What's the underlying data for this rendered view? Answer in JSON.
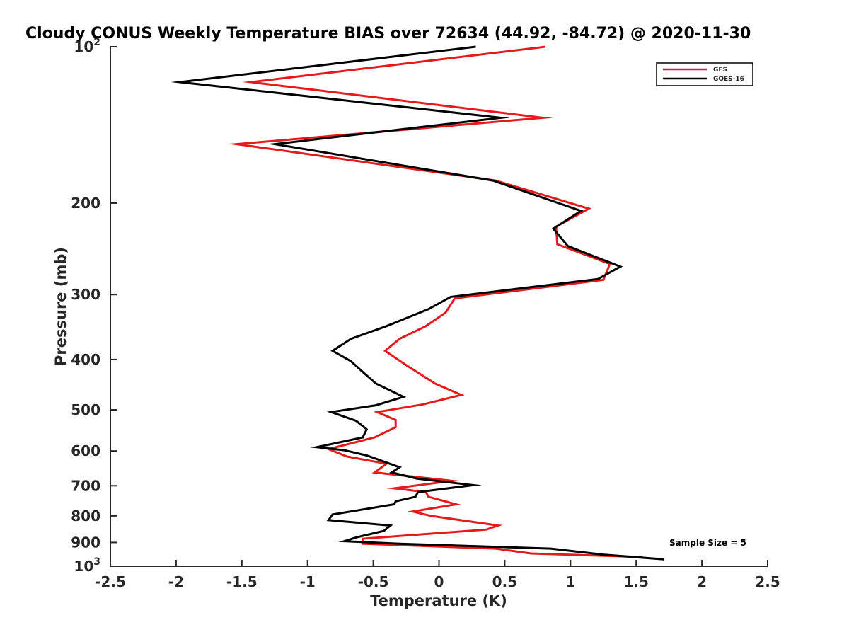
{
  "chart_data": {
    "type": "line",
    "title": "Cloudy CONUS Weekly Temperature BIAS over 72634 (44.92, -84.72) @ 2020-11-30",
    "xlabel": "Temperature (K)",
    "ylabel": "Pressure (mb)",
    "xlim": [
      -2.5,
      2.5
    ],
    "ylim": [
      100,
      1000
    ],
    "y_scale": "log",
    "y_reversed": true,
    "grid": false,
    "legend_position": "top-right",
    "annotation": "Sample Size = 5",
    "x_ticks": [
      -2.5,
      -2,
      -1.5,
      -1,
      -0.5,
      0,
      0.5,
      1,
      1.5,
      2,
      2.5
    ],
    "x_tick_labels": [
      "-2.5",
      "-2",
      "-1.5",
      "-1",
      "-0.5",
      "0",
      "0.5",
      "1",
      "1.5",
      "2",
      "2.5"
    ],
    "y_ticks": [
      100,
      200,
      300,
      400,
      500,
      600,
      700,
      800,
      900,
      1000
    ],
    "y_tick_labels": [
      {
        "base": "10",
        "exp": "2"
      },
      {
        "base": "200",
        "exp": ""
      },
      {
        "base": "300",
        "exp": ""
      },
      {
        "base": "400",
        "exp": ""
      },
      {
        "base": "500",
        "exp": ""
      },
      {
        "base": "600",
        "exp": ""
      },
      {
        "base": "700",
        "exp": ""
      },
      {
        "base": "800",
        "exp": ""
      },
      {
        "base": "900",
        "exp": ""
      },
      {
        "base": "10",
        "exp": "3"
      }
    ],
    "series": [
      {
        "name": "GFS",
        "color": "#e41a1c",
        "points": [
          [
            0.81,
            100
          ],
          [
            -1.43,
            117
          ],
          [
            0.79,
            137
          ],
          [
            -1.54,
            154
          ],
          [
            0.43,
            181
          ],
          [
            1.14,
            205
          ],
          [
            0.89,
            222
          ],
          [
            0.9,
            240
          ],
          [
            1.3,
            262
          ],
          [
            1.25,
            281
          ],
          [
            0.12,
            305
          ],
          [
            0.05,
            325
          ],
          [
            -0.1,
            345
          ],
          [
            -0.3,
            365
          ],
          [
            -0.41,
            385
          ],
          [
            -0.25,
            410
          ],
          [
            -0.03,
            445
          ],
          [
            0.17,
            468
          ],
          [
            -0.12,
            488
          ],
          [
            -0.47,
            505
          ],
          [
            -0.33,
            523
          ],
          [
            -0.33,
            540
          ],
          [
            -0.49,
            565
          ],
          [
            -0.84,
            595
          ],
          [
            -0.7,
            615
          ],
          [
            -0.4,
            635
          ],
          [
            -0.49,
            660
          ],
          [
            0.1,
            685
          ],
          [
            -0.34,
            708
          ],
          [
            -0.1,
            720
          ],
          [
            -0.08,
            735
          ],
          [
            0.13,
            760
          ],
          [
            -0.2,
            785
          ],
          [
            -0.06,
            800
          ],
          [
            0.45,
            835
          ],
          [
            0.36,
            850
          ],
          [
            -0.58,
            885
          ],
          [
            -0.58,
            905
          ],
          [
            0.43,
            925
          ],
          [
            0.7,
            945
          ],
          [
            1.55,
            960
          ]
        ]
      },
      {
        "name": "GOES-16",
        "color": "#000000",
        "points": [
          [
            0.28,
            100
          ],
          [
            -1.97,
            117
          ],
          [
            0.47,
            137
          ],
          [
            -1.25,
            154
          ],
          [
            0.41,
            181
          ],
          [
            1.08,
            207
          ],
          [
            0.87,
            224
          ],
          [
            0.98,
            242
          ],
          [
            1.38,
            265
          ],
          [
            1.21,
            280
          ],
          [
            0.09,
            303
          ],
          [
            -0.08,
            320
          ],
          [
            -0.4,
            345
          ],
          [
            -0.67,
            365
          ],
          [
            -0.81,
            385
          ],
          [
            -0.67,
            403
          ],
          [
            -0.57,
            425
          ],
          [
            -0.48,
            445
          ],
          [
            -0.27,
            472
          ],
          [
            -0.48,
            490
          ],
          [
            -0.82,
            505
          ],
          [
            -0.63,
            525
          ],
          [
            -0.55,
            545
          ],
          [
            -0.58,
            565
          ],
          [
            -0.93,
            590
          ],
          [
            -0.72,
            598
          ],
          [
            -0.55,
            612
          ],
          [
            -0.3,
            645
          ],
          [
            -0.36,
            660
          ],
          [
            -0.17,
            678
          ],
          [
            0.26,
            698
          ],
          [
            -0.16,
            720
          ],
          [
            -0.18,
            735
          ],
          [
            -0.33,
            750
          ],
          [
            -0.34,
            760
          ],
          [
            -0.81,
            795
          ],
          [
            -0.84,
            815
          ],
          [
            -0.37,
            835
          ],
          [
            -0.42,
            855
          ],
          [
            -0.63,
            880
          ],
          [
            -0.72,
            895
          ],
          [
            -0.3,
            905
          ],
          [
            0.85,
            925
          ],
          [
            1.25,
            950
          ],
          [
            1.71,
            970
          ]
        ]
      }
    ]
  }
}
